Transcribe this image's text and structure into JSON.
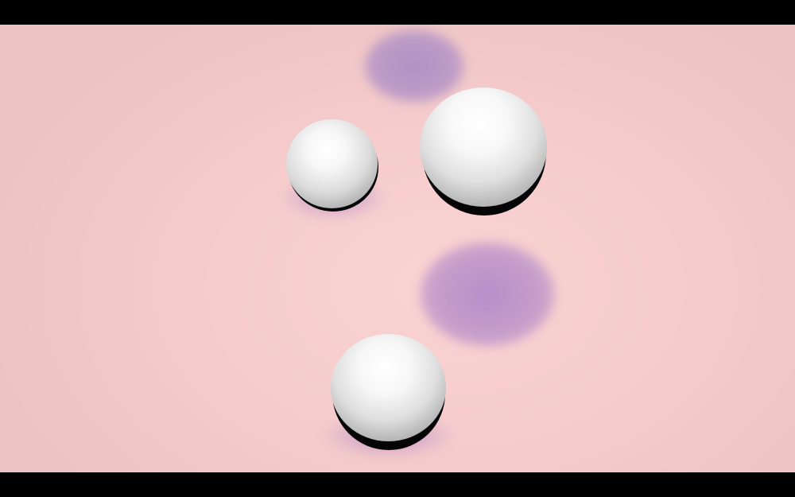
{
  "scene": {
    "background_color": "#f6cccc",
    "letterbox_color": "#000000",
    "shadow_color": "#a58cc4",
    "sphere_color": "#ffffff",
    "sphere_shade_color": "#7a7a7a"
  },
  "objects": [
    {
      "kind": "sphere",
      "name": "small-sphere"
    },
    {
      "kind": "sphere",
      "name": "large-sphere"
    },
    {
      "kind": "sphere",
      "name": "bottom-sphere"
    },
    {
      "kind": "shadow",
      "name": "floating-shadow-top"
    },
    {
      "kind": "shadow",
      "name": "floating-shadow-middle"
    }
  ]
}
